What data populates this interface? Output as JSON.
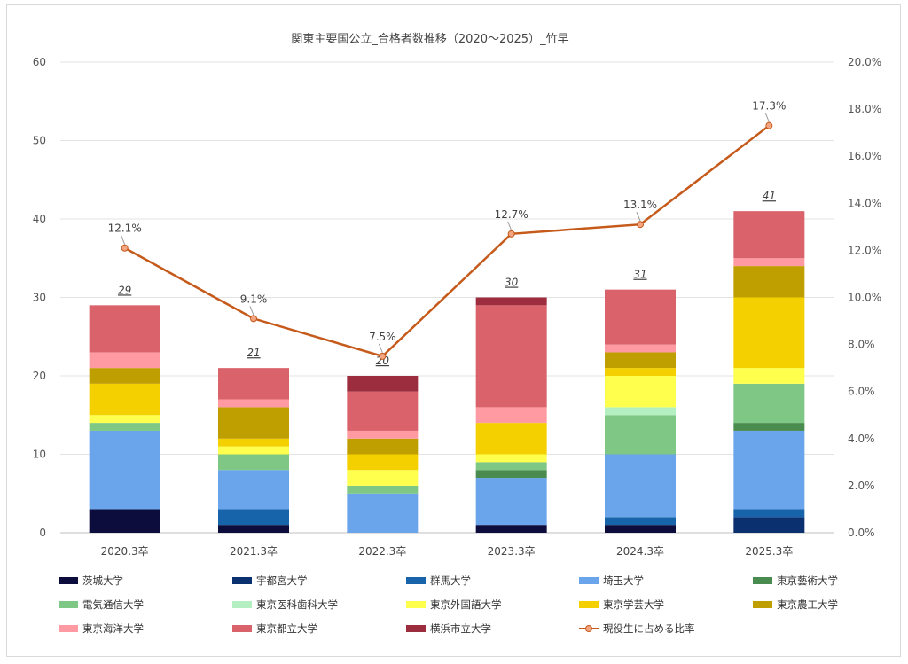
{
  "chart_data": {
    "type": "bar",
    "title": "関東主要国公立_合格者数推移（2020～2025）_竹早",
    "categories": [
      "2020.3卒",
      "2021.3卒",
      "2022.3卒",
      "2023.3卒",
      "2024.3卒",
      "2025.3卒"
    ],
    "ylim": [
      0,
      60
    ],
    "yticks": [
      "0",
      "10",
      "20",
      "30",
      "40",
      "50",
      "60"
    ],
    "y2lim": [
      0,
      0.2
    ],
    "y2ticks": [
      "0.0%",
      "2.0%",
      "4.0%",
      "6.0%",
      "8.0%",
      "10.0%",
      "12.0%",
      "14.0%",
      "16.0%",
      "18.0%",
      "20.0%"
    ],
    "totals": [
      "29",
      "21",
      "20",
      "30",
      "31",
      "41"
    ],
    "series": [
      {
        "name": "茨城大学",
        "color": "#0d0d3d",
        "values": [
          3,
          1,
          0,
          1,
          1,
          0
        ]
      },
      {
        "name": "宇都宮大学",
        "color": "#0b3070",
        "values": [
          0,
          0,
          0,
          0,
          0,
          2
        ]
      },
      {
        "name": "群馬大学",
        "color": "#1764ab",
        "values": [
          0,
          2,
          0,
          0,
          1,
          1
        ]
      },
      {
        "name": "埼玉大学",
        "color": "#6aa5ec",
        "values": [
          10,
          5,
          5,
          6,
          8,
          10
        ]
      },
      {
        "name": "東京藝術大学",
        "color": "#4a8c50",
        "values": [
          0,
          0,
          0,
          1,
          0,
          1
        ]
      },
      {
        "name": "電気通信大学",
        "color": "#7ec784",
        "values": [
          1,
          2,
          1,
          1,
          5,
          5
        ]
      },
      {
        "name": "東京医科歯科大学",
        "color": "#b3efc1",
        "values": [
          0,
          0,
          0,
          0,
          1,
          0
        ]
      },
      {
        "name": "東京外国語大学",
        "color": "#ffff4d",
        "values": [
          1,
          1,
          2,
          1,
          4,
          2
        ]
      },
      {
        "name": "東京学芸大学",
        "color": "#f5d000",
        "values": [
          4,
          1,
          2,
          4,
          1,
          9
        ]
      },
      {
        "name": "東京農工大学",
        "color": "#bf9e00",
        "values": [
          2,
          4,
          2,
          0,
          2,
          4
        ]
      },
      {
        "name": "東京海洋大学",
        "color": "#ff9aa2",
        "values": [
          2,
          1,
          1,
          2,
          1,
          1
        ]
      },
      {
        "name": "東京都立大学",
        "color": "#d9626b",
        "values": [
          6,
          4,
          5,
          13,
          7,
          6
        ]
      },
      {
        "name": "横浜市立大学",
        "color": "#9b2d3f",
        "values": [
          0,
          0,
          2,
          1,
          0,
          0
        ]
      }
    ],
    "line": {
      "name": "現役生に占める比率",
      "color": "#c55a1b",
      "marker_fill": "#f4a582",
      "values": [
        0.121,
        0.091,
        0.075,
        0.127,
        0.131,
        0.173
      ],
      "labels": [
        "12.1%",
        "9.1%",
        "7.5%",
        "12.7%",
        "13.1%",
        "17.3%"
      ]
    },
    "grid": true,
    "legend_position": "bottom"
  }
}
